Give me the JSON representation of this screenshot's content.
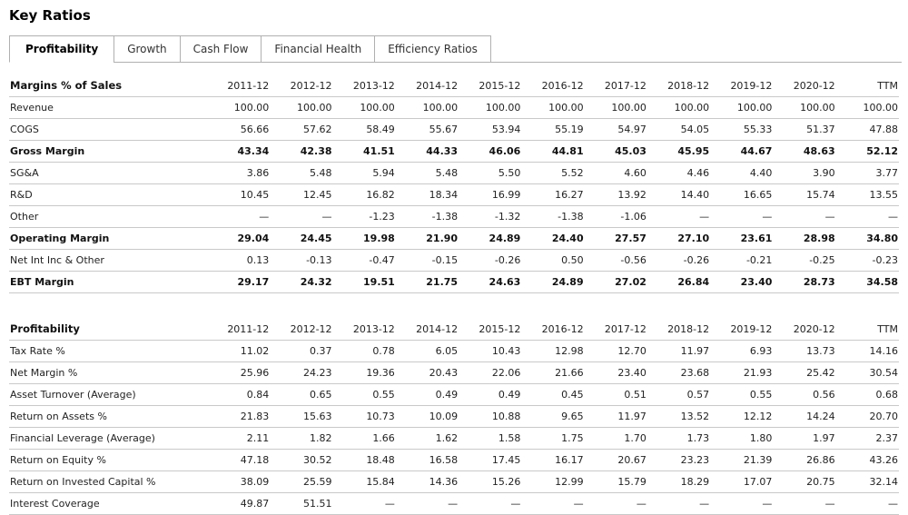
{
  "page": {
    "title": "Key Ratios"
  },
  "tabs": [
    {
      "label": "Profitability",
      "active": true
    },
    {
      "label": "Growth",
      "active": false
    },
    {
      "label": "Cash Flow",
      "active": false
    },
    {
      "label": "Financial Health",
      "active": false
    },
    {
      "label": "Efficiency Ratios",
      "active": false
    }
  ],
  "columns": [
    "2011-12",
    "2012-12",
    "2013-12",
    "2014-12",
    "2015-12",
    "2016-12",
    "2017-12",
    "2018-12",
    "2019-12",
    "2020-12",
    "TTM"
  ],
  "tables": [
    {
      "header": "Margins % of Sales",
      "rows": [
        {
          "label": "Revenue",
          "bold": false,
          "values": [
            "100.00",
            "100.00",
            "100.00",
            "100.00",
            "100.00",
            "100.00",
            "100.00",
            "100.00",
            "100.00",
            "100.00",
            "100.00"
          ]
        },
        {
          "label": "COGS",
          "bold": false,
          "values": [
            "56.66",
            "57.62",
            "58.49",
            "55.67",
            "53.94",
            "55.19",
            "54.97",
            "54.05",
            "55.33",
            "51.37",
            "47.88"
          ]
        },
        {
          "label": "Gross Margin",
          "bold": true,
          "values": [
            "43.34",
            "42.38",
            "41.51",
            "44.33",
            "46.06",
            "44.81",
            "45.03",
            "45.95",
            "44.67",
            "48.63",
            "52.12"
          ]
        },
        {
          "label": "SG&A",
          "bold": false,
          "values": [
            "3.86",
            "5.48",
            "5.94",
            "5.48",
            "5.50",
            "5.52",
            "4.60",
            "4.46",
            "4.40",
            "3.90",
            "3.77"
          ]
        },
        {
          "label": "R&D",
          "bold": false,
          "values": [
            "10.45",
            "12.45",
            "16.82",
            "18.34",
            "16.99",
            "16.27",
            "13.92",
            "14.40",
            "16.65",
            "15.74",
            "13.55"
          ]
        },
        {
          "label": "Other",
          "bold": false,
          "values": [
            "—",
            "—",
            "-1.23",
            "-1.38",
            "-1.32",
            "-1.38",
            "-1.06",
            "—",
            "—",
            "—",
            "—"
          ]
        },
        {
          "label": "Operating Margin",
          "bold": true,
          "values": [
            "29.04",
            "24.45",
            "19.98",
            "21.90",
            "24.89",
            "24.40",
            "27.57",
            "27.10",
            "23.61",
            "28.98",
            "34.80"
          ]
        },
        {
          "label": "Net Int Inc & Other",
          "bold": false,
          "values": [
            "0.13",
            "-0.13",
            "-0.47",
            "-0.15",
            "-0.26",
            "0.50",
            "-0.56",
            "-0.26",
            "-0.21",
            "-0.25",
            "-0.23"
          ]
        },
        {
          "label": "EBT Margin",
          "bold": true,
          "values": [
            "29.17",
            "24.32",
            "19.51",
            "21.75",
            "24.63",
            "24.89",
            "27.02",
            "26.84",
            "23.40",
            "28.73",
            "34.58"
          ]
        }
      ]
    },
    {
      "header": "Profitability",
      "rows": [
        {
          "label": "Tax Rate %",
          "bold": false,
          "values": [
            "11.02",
            "0.37",
            "0.78",
            "6.05",
            "10.43",
            "12.98",
            "12.70",
            "11.97",
            "6.93",
            "13.73",
            "14.16"
          ]
        },
        {
          "label": "Net Margin %",
          "bold": false,
          "values": [
            "25.96",
            "24.23",
            "19.36",
            "20.43",
            "22.06",
            "21.66",
            "23.40",
            "23.68",
            "21.93",
            "25.42",
            "30.54"
          ]
        },
        {
          "label": "Asset Turnover (Average)",
          "bold": false,
          "values": [
            "0.84",
            "0.65",
            "0.55",
            "0.49",
            "0.49",
            "0.45",
            "0.51",
            "0.57",
            "0.55",
            "0.56",
            "0.68"
          ]
        },
        {
          "label": "Return on Assets %",
          "bold": false,
          "values": [
            "21.83",
            "15.63",
            "10.73",
            "10.09",
            "10.88",
            "9.65",
            "11.97",
            "13.52",
            "12.12",
            "14.24",
            "20.70"
          ]
        },
        {
          "label": "Financial Leverage (Average)",
          "bold": false,
          "values": [
            "2.11",
            "1.82",
            "1.66",
            "1.62",
            "1.58",
            "1.75",
            "1.70",
            "1.73",
            "1.80",
            "1.97",
            "2.37"
          ]
        },
        {
          "label": "Return on Equity %",
          "bold": false,
          "values": [
            "47.18",
            "30.52",
            "18.48",
            "16.58",
            "17.45",
            "16.17",
            "20.67",
            "23.23",
            "21.39",
            "26.86",
            "43.26"
          ]
        },
        {
          "label": "Return on Invested Capital %",
          "bold": false,
          "values": [
            "38.09",
            "25.59",
            "15.84",
            "14.36",
            "15.26",
            "12.99",
            "15.79",
            "18.29",
            "17.07",
            "20.75",
            "32.14"
          ]
        },
        {
          "label": "Interest Coverage",
          "bold": false,
          "values": [
            "49.87",
            "51.51",
            "—",
            "—",
            "—",
            "—",
            "—",
            "—",
            "—",
            "—",
            "—"
          ]
        }
      ]
    }
  ],
  "colors": {
    "row_border": "#c9c9c9",
    "tab_border": "#b0b0b0",
    "text": "#222222"
  }
}
